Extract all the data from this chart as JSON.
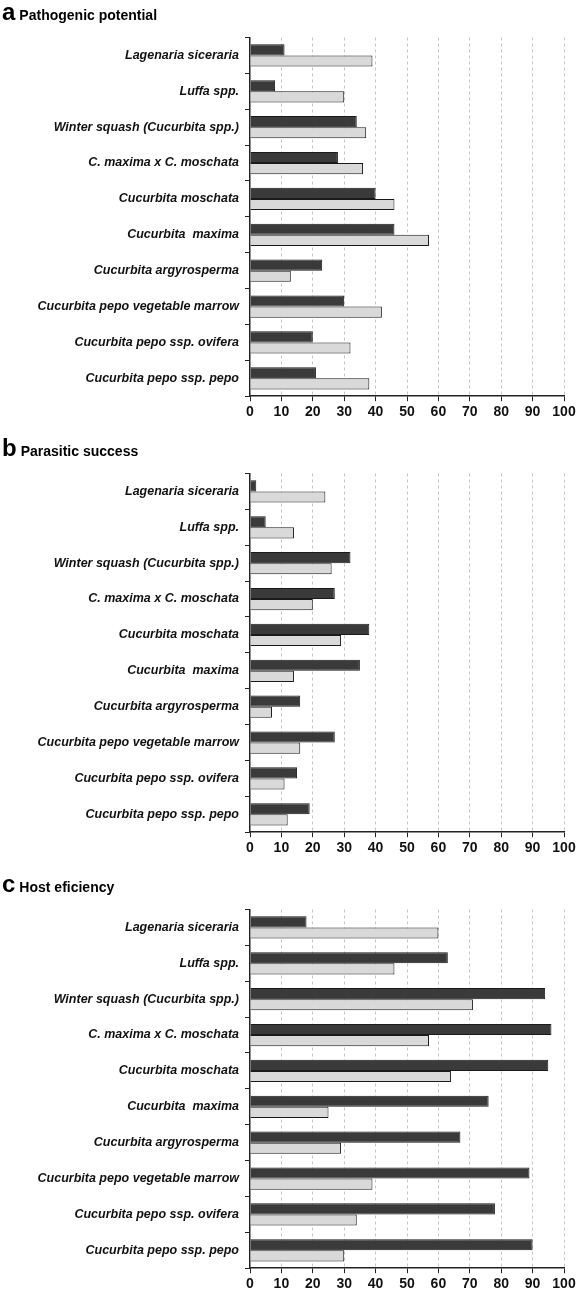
{
  "chart_data": [
    {
      "type": "bar",
      "orientation": "horizontal",
      "title": "Pathogenic potential",
      "annotations": [
        "a"
      ],
      "categories": [
        "Lagenaria siceraria",
        "Luffa spp.",
        "Winter squash (Cucurbita spp.)",
        "C. maxima x C. moschata",
        "Cucurbita moschata",
        "Cucurbita  maxima",
        "Cucurbita argyrosperma",
        "Cucurbita pepo vegetable marrow",
        "Cucurbita pepo ssp. ovifera",
        "Cucurbita pepo ssp. pepo"
      ],
      "series": [
        {
          "color": "#3a3a3a",
          "values": [
            11,
            8,
            34,
            28,
            40,
            46,
            23,
            30,
            20,
            21
          ]
        },
        {
          "color": "#d9d9d9",
          "values": [
            39,
            30,
            37,
            36,
            46,
            57,
            13,
            42,
            32,
            38
          ]
        }
      ],
      "xlim": [
        0,
        100
      ],
      "xticks": [
        0,
        10,
        20,
        30,
        40,
        50,
        60,
        70,
        80,
        90,
        100
      ],
      "grid": "x",
      "legend": false
    },
    {
      "type": "bar",
      "orientation": "horizontal",
      "title": "Parasitic success",
      "annotations": [
        "b"
      ],
      "categories": [
        "Lagenaria siceraria",
        "Luffa spp.",
        "Winter squash (Cucurbita spp.)",
        "C. maxima x C. moschata",
        "Cucurbita moschata",
        "Cucurbita  maxima",
        "Cucurbita argyrosperma",
        "Cucurbita pepo vegetable marrow",
        "Cucurbita pepo ssp. ovifera",
        "Cucurbita pepo ssp. pepo"
      ],
      "series": [
        {
          "color": "#3a3a3a",
          "values": [
            2,
            5,
            32,
            27,
            38,
            35,
            16,
            27,
            15,
            19
          ]
        },
        {
          "color": "#d9d9d9",
          "values": [
            24,
            14,
            26,
            20,
            29,
            14,
            7,
            16,
            11,
            12
          ]
        }
      ],
      "xlim": [
        0,
        100
      ],
      "xticks": [
        0,
        10,
        20,
        30,
        40,
        50,
        60,
        70,
        80,
        90,
        100
      ],
      "grid": "x",
      "legend": false
    },
    {
      "type": "bar",
      "orientation": "horizontal",
      "title": "Host eficiency",
      "annotations": [
        "c"
      ],
      "categories": [
        "Lagenaria siceraria",
        "Luffa spp.",
        "Winter squash (Cucurbita spp.)",
        "C. maxima x C. moschata",
        "Cucurbita moschata",
        "Cucurbita  maxima",
        "Cucurbita argyrosperma",
        "Cucurbita pepo vegetable marrow",
        "Cucurbita pepo ssp. ovifera",
        "Cucurbita pepo ssp. pepo"
      ],
      "series": [
        {
          "color": "#3a3a3a",
          "values": [
            18,
            63,
            94,
            96,
            95,
            76,
            67,
            89,
            78,
            90
          ]
        },
        {
          "color": "#d9d9d9",
          "values": [
            60,
            46,
            71,
            57,
            64,
            25,
            29,
            39,
            34,
            30
          ]
        }
      ],
      "xlim": [
        0,
        100
      ],
      "xticks": [
        0,
        10,
        20,
        30,
        40,
        50,
        60,
        70,
        80,
        90,
        100
      ],
      "grid": "x",
      "legend": false
    }
  ]
}
